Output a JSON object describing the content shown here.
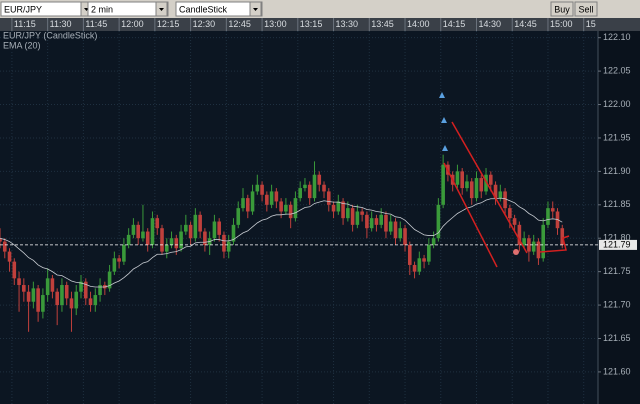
{
  "toolbar": {
    "symbol": "EUR/JPY",
    "interval": "2 min",
    "chart_style": "CandleStick",
    "buttons": [
      "Buy",
      "Sell"
    ]
  },
  "chart_data": {
    "type": "candlestick",
    "xlim": [
      670,
      921
    ],
    "xticks": [
      {
        "value": 675,
        "label": "11:15"
      },
      {
        "value": 690,
        "label": "11:30"
      },
      {
        "value": 705,
        "label": "11:45"
      },
      {
        "value": 720,
        "label": "12:00"
      },
      {
        "value": 735,
        "label": "12:15"
      },
      {
        "value": 750,
        "label": "12:30"
      },
      {
        "value": 765,
        "label": "12:45"
      },
      {
        "value": 780,
        "label": "13:00"
      },
      {
        "value": 795,
        "label": "13:15"
      },
      {
        "value": 810,
        "label": "13:30"
      },
      {
        "value": 825,
        "label": "13:45"
      },
      {
        "value": 840,
        "label": "14:00"
      },
      {
        "value": 855,
        "label": "14:15"
      },
      {
        "value": 870,
        "label": "14:30"
      },
      {
        "value": 885,
        "label": "14:45"
      },
      {
        "value": 900,
        "label": "15:00"
      },
      {
        "value": 915,
        "label": "15"
      }
    ],
    "ylim": [
      121.552,
      122.11
    ],
    "yticks": [
      {
        "value": 122.1,
        "label": "122.10"
      },
      122.05,
      {
        "value": 122.0,
        "label": "122.00"
      },
      121.95,
      {
        "value": 121.9,
        "label": "121.90"
      },
      121.85,
      {
        "value": 121.8,
        "label": "121.80"
      },
      121.75,
      {
        "value": 121.7,
        "label": "121.70"
      },
      121.65,
      {
        "value": 121.6,
        "label": "121.60"
      }
    ],
    "grid": true,
    "current_price": 121.79,
    "x": [
      670,
      672,
      674,
      676,
      678,
      680,
      682,
      684,
      686,
      688,
      690,
      692,
      694,
      696,
      698,
      700,
      702,
      704,
      706,
      708,
      710,
      712,
      714,
      716,
      718,
      720,
      722,
      724,
      726,
      728,
      730,
      732,
      734,
      736,
      738,
      740,
      742,
      744,
      746,
      748,
      750,
      752,
      754,
      756,
      758,
      760,
      762,
      764,
      766,
      768,
      770,
      772,
      774,
      776,
      778,
      780,
      782,
      784,
      786,
      788,
      790,
      792,
      794,
      796,
      798,
      800,
      802,
      804,
      806,
      808,
      810,
      812,
      814,
      816,
      818,
      820,
      822,
      824,
      826,
      828,
      830,
      832,
      834,
      836,
      838,
      840,
      842,
      844,
      846,
      848,
      850,
      852,
      854,
      856,
      858,
      860,
      862,
      864,
      866,
      868,
      870,
      872,
      874,
      876,
      878,
      880,
      882,
      884,
      886,
      888,
      890,
      892,
      894,
      896,
      898,
      900,
      902,
      904,
      906
    ],
    "series": [
      {
        "name": "EUR/JPY (CandleStick)",
        "type": "candlestick",
        "up_color": "#3a9a3a",
        "down_color": "#c0403c",
        "open": [
          121.8,
          121.795,
          121.78,
          121.765,
          121.74,
          121.73,
          121.72,
          121.705,
          121.725,
          121.69,
          121.715,
          121.74,
          121.72,
          121.7,
          121.73,
          121.71,
          121.695,
          121.72,
          121.735,
          121.71,
          121.7,
          121.715,
          121.73,
          121.725,
          121.75,
          121.77,
          121.765,
          121.79,
          121.805,
          121.82,
          121.8,
          121.81,
          121.79,
          121.83,
          121.815,
          121.78,
          121.79,
          121.8,
          121.785,
          121.81,
          121.82,
          121.8,
          121.835,
          121.81,
          121.79,
          121.8,
          121.825,
          121.805,
          121.78,
          121.795,
          121.82,
          121.845,
          121.86,
          121.84,
          121.87,
          121.88,
          121.865,
          121.85,
          121.87,
          121.855,
          121.84,
          121.85,
          121.83,
          121.86,
          121.875,
          121.88,
          121.86,
          121.895,
          121.88,
          121.87,
          121.85,
          121.84,
          121.855,
          121.83,
          121.845,
          121.82,
          121.84,
          121.835,
          121.815,
          121.83,
          121.82,
          121.835,
          121.81,
          121.825,
          121.8,
          121.815,
          121.79,
          121.76,
          121.75,
          121.77,
          121.765,
          121.79,
          121.8,
          121.85,
          121.91,
          121.895,
          121.88,
          121.9,
          121.875,
          121.885,
          121.86,
          121.89,
          121.87,
          121.895,
          121.88,
          121.86,
          121.87,
          121.845,
          121.83,
          121.82,
          121.79,
          121.8,
          121.78,
          121.795,
          121.77,
          121.82,
          121.845,
          121.84,
          121.815
        ],
        "high": [
          121.815,
          121.8,
          121.785,
          121.77,
          121.75,
          121.74,
          121.73,
          121.735,
          121.73,
          121.725,
          121.755,
          121.745,
          121.725,
          121.74,
          121.735,
          121.72,
          121.73,
          121.745,
          121.74,
          121.72,
          121.725,
          121.74,
          121.735,
          121.76,
          121.78,
          121.775,
          121.8,
          121.815,
          121.83,
          121.825,
          121.85,
          121.815,
          121.84,
          121.835,
          121.82,
          121.8,
          121.81,
          121.805,
          121.82,
          121.835,
          121.825,
          121.845,
          121.84,
          121.815,
          121.81,
          121.835,
          121.83,
          121.81,
          121.805,
          121.83,
          121.855,
          121.875,
          121.865,
          121.88,
          121.895,
          121.885,
          121.87,
          121.88,
          121.875,
          121.86,
          121.86,
          121.855,
          121.87,
          121.885,
          121.89,
          121.885,
          121.915,
          121.9,
          121.885,
          121.875,
          121.855,
          121.865,
          121.86,
          121.855,
          121.85,
          121.85,
          121.845,
          121.84,
          121.84,
          121.835,
          121.845,
          121.84,
          121.835,
          121.83,
          121.825,
          121.82,
          121.795,
          121.765,
          121.78,
          121.775,
          121.8,
          121.81,
          121.86,
          121.925,
          121.915,
          121.9,
          121.91,
          121.905,
          121.895,
          121.89,
          121.9,
          121.895,
          121.905,
          121.9,
          121.885,
          121.88,
          121.875,
          121.85,
          121.835,
          121.825,
          121.81,
          121.805,
          121.805,
          121.8,
          121.83,
          121.855,
          121.855,
          121.845,
          121.82
        ],
        "low": [
          121.785,
          121.77,
          121.75,
          121.73,
          121.69,
          121.705,
          121.66,
          121.695,
          121.675,
          121.68,
          121.705,
          121.71,
          121.67,
          121.69,
          121.7,
          121.66,
          121.685,
          121.71,
          121.7,
          121.69,
          121.69,
          121.705,
          121.715,
          121.72,
          121.745,
          121.755,
          121.76,
          121.785,
          121.8,
          121.79,
          121.795,
          121.78,
          121.785,
          121.805,
          121.775,
          121.77,
          121.785,
          121.775,
          121.78,
          121.805,
          121.79,
          121.795,
          121.8,
          121.78,
          121.775,
          121.795,
          121.795,
          121.77,
          121.77,
          121.79,
          121.815,
          121.84,
          121.83,
          121.835,
          121.865,
          121.855,
          121.84,
          121.845,
          121.845,
          121.83,
          121.835,
          121.815,
          121.825,
          121.855,
          121.87,
          121.85,
          121.855,
          121.87,
          121.86,
          121.84,
          121.83,
          121.835,
          121.82,
          121.825,
          121.81,
          121.815,
          121.825,
          121.8,
          121.81,
          121.81,
          121.815,
          121.8,
          121.805,
          121.79,
          121.795,
          121.78,
          121.745,
          121.74,
          121.745,
          121.755,
          121.76,
          121.785,
          121.795,
          121.845,
          121.885,
          121.87,
          121.875,
          121.865,
          121.87,
          121.85,
          121.855,
          121.86,
          121.865,
          121.87,
          121.85,
          121.855,
          121.835,
          121.815,
          121.81,
          121.78,
          121.785,
          121.765,
          121.775,
          121.76,
          121.765,
          121.815,
          121.83,
          121.805,
          121.785
        ],
        "close": [
          121.795,
          121.78,
          121.765,
          121.74,
          121.73,
          121.72,
          121.705,
          121.725,
          121.69,
          121.715,
          121.74,
          121.72,
          121.7,
          121.73,
          121.71,
          121.695,
          121.72,
          121.735,
          121.71,
          121.7,
          121.715,
          121.73,
          121.725,
          121.75,
          121.77,
          121.765,
          121.79,
          121.805,
          121.82,
          121.8,
          121.81,
          121.79,
          121.83,
          121.815,
          121.78,
          121.79,
          121.8,
          121.785,
          121.81,
          121.82,
          121.8,
          121.835,
          121.81,
          121.79,
          121.8,
          121.825,
          121.805,
          121.78,
          121.795,
          121.82,
          121.845,
          121.86,
          121.84,
          121.87,
          121.88,
          121.865,
          121.85,
          121.87,
          121.855,
          121.84,
          121.85,
          121.83,
          121.86,
          121.875,
          121.88,
          121.86,
          121.895,
          121.88,
          121.87,
          121.85,
          121.84,
          121.855,
          121.83,
          121.845,
          121.82,
          121.84,
          121.835,
          121.815,
          121.83,
          121.82,
          121.835,
          121.81,
          121.825,
          121.8,
          121.815,
          121.79,
          121.76,
          121.75,
          121.77,
          121.765,
          121.79,
          121.8,
          121.85,
          121.91,
          121.895,
          121.88,
          121.9,
          121.875,
          121.885,
          121.86,
          121.89,
          121.87,
          121.895,
          121.88,
          121.86,
          121.87,
          121.845,
          121.83,
          121.82,
          121.79,
          121.8,
          121.78,
          121.795,
          121.77,
          121.82,
          121.845,
          121.84,
          121.815,
          121.79
        ]
      },
      {
        "name": "EMA (20)",
        "type": "line",
        "color": "#c8ccd2",
        "values": [
          121.8,
          121.798,
          121.795,
          121.79,
          121.784,
          121.778,
          121.771,
          121.767,
          121.76,
          121.756,
          121.754,
          121.75,
          121.745,
          121.744,
          121.74,
          121.736,
          121.734,
          121.733,
          121.731,
          121.728,
          121.727,
          121.727,
          121.727,
          121.729,
          121.733,
          121.736,
          121.741,
          121.747,
          121.754,
          121.758,
          121.763,
          121.765,
          121.771,
          121.776,
          121.776,
          121.777,
          121.779,
          121.78,
          121.783,
          121.787,
          121.788,
          121.793,
          121.794,
          121.794,
          121.795,
          121.798,
          121.798,
          121.796,
          121.796,
          121.798,
          121.803,
          121.808,
          121.811,
          121.817,
          121.823,
          121.827,
          121.829,
          121.833,
          121.835,
          121.835,
          121.836,
          121.836,
          121.838,
          121.842,
          121.846,
          121.847,
          121.852,
          121.854,
          121.856,
          121.855,
          121.854,
          121.854,
          121.852,
          121.851,
          121.848,
          121.847,
          121.846,
          121.843,
          121.842,
          121.84,
          121.839,
          121.837,
          121.836,
          121.832,
          121.831,
          121.827,
          121.82,
          121.813,
          121.809,
          121.805,
          121.804,
          121.804,
          121.808,
          121.818,
          121.825,
          121.831,
          121.837,
          121.841,
          121.845,
          121.847,
          121.851,
          121.853,
          121.857,
          121.859,
          121.859,
          121.86,
          121.859,
          121.856,
          121.853,
          121.847,
          121.843,
          121.837,
          121.833,
          121.827,
          121.826,
          121.828,
          121.829,
          121.828,
          121.824
        ]
      }
    ]
  }
}
